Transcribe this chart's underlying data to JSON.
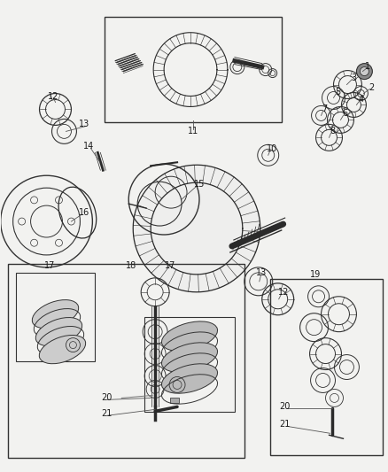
{
  "bg_color": "#f2f2f0",
  "fig_width": 4.38,
  "fig_height": 5.33,
  "dpi": 100
}
